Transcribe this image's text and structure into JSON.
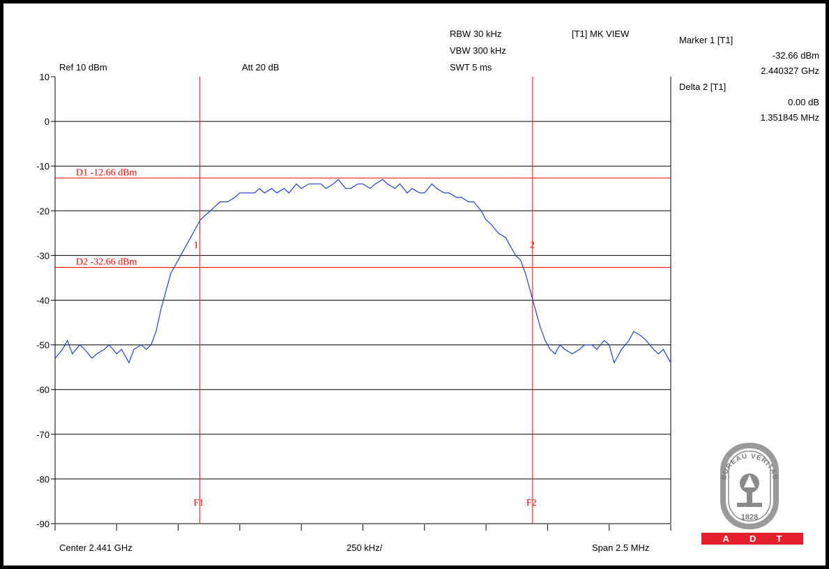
{
  "header": {
    "ref_level": "Ref 10 dBm",
    "attenuation": "Att  20 dB",
    "rbw": "RBW 30 kHz",
    "vbw": "VBW 300 kHz",
    "swt": "SWT 5 ms",
    "view_mode": "[T1] MK VIEW"
  },
  "markers": {
    "marker1_title": "Marker 1 [T1]",
    "marker1_level": "-32.66 dBm",
    "marker1_freq": "2.440327 GHz",
    "delta2_title": "Delta 2 [T1]",
    "delta2_level": "0.00 dB",
    "delta2_freq": "1.351845 MHz"
  },
  "footer": {
    "center": "Center 2.441 GHz",
    "per_div": "250 kHz/",
    "span": "Span 2.5 MHz"
  },
  "logo": {
    "text_top": "BUREAU VERITAS",
    "year": "1828",
    "bar_letters": [
      "A",
      "D",
      "T"
    ]
  },
  "colors": {
    "trace": "#1f3fd0",
    "marker_lines": "#ff0000",
    "grid": "#000000",
    "logo_red": "#e4202c"
  },
  "chart_data": {
    "type": "line",
    "title": "",
    "xlabel": "",
    "ylabel": "",
    "ylim": [
      -90,
      10
    ],
    "y_ticks": [
      10,
      0,
      -10,
      -20,
      -30,
      -40,
      -50,
      -60,
      -70,
      -80,
      -90
    ],
    "y_tick_labels": [
      "10",
      "0",
      "-10",
      "-20",
      "-30",
      "-40",
      "-50",
      "-60",
      "-70",
      "-80",
      "-90"
    ],
    "x_unit": "MHz offset from center",
    "xlim": [
      -1.25,
      1.25
    ],
    "x_div_count": 10,
    "grid": true,
    "reference_lines": [
      {
        "label": "D1 -12.66 dBm",
        "value": -12.66
      },
      {
        "label": "D2 -32.66 dBm",
        "value": -32.66
      }
    ],
    "frequency_lines": [
      {
        "label": "F1",
        "x": -0.662
      },
      {
        "label": "F2",
        "x": 0.689
      }
    ],
    "marker_points": [
      {
        "label": "1",
        "x": -0.662,
        "y": -32.66
      },
      {
        "label": "2",
        "x": 0.689,
        "y": -32.66
      }
    ],
    "series": [
      {
        "x": [
          -1.25,
          -1.22,
          -1.2,
          -1.18,
          -1.15,
          -1.13,
          -1.1,
          -1.08,
          -1.05,
          -1.03,
          -1.0,
          -0.98,
          -0.95,
          -0.93,
          -0.9,
          -0.88,
          -0.86,
          -0.84,
          -0.82,
          -0.8,
          -0.78,
          -0.76,
          -0.74,
          -0.72,
          -0.7,
          -0.68,
          -0.66,
          -0.64,
          -0.62,
          -0.6,
          -0.58,
          -0.55,
          -0.52,
          -0.5,
          -0.47,
          -0.44,
          -0.42,
          -0.4,
          -0.37,
          -0.35,
          -0.32,
          -0.3,
          -0.27,
          -0.25,
          -0.22,
          -0.2,
          -0.17,
          -0.15,
          -0.12,
          -0.1,
          -0.07,
          -0.05,
          -0.02,
          0.0,
          0.03,
          0.05,
          0.08,
          0.1,
          0.13,
          0.15,
          0.18,
          0.2,
          0.23,
          0.25,
          0.28,
          0.3,
          0.33,
          0.35,
          0.38,
          0.4,
          0.43,
          0.45,
          0.48,
          0.5,
          0.52,
          0.55,
          0.58,
          0.6,
          0.62,
          0.64,
          0.66,
          0.68,
          0.7,
          0.72,
          0.74,
          0.76,
          0.78,
          0.8,
          0.82,
          0.85,
          0.88,
          0.9,
          0.93,
          0.95,
          0.98,
          1.0,
          1.02,
          1.05,
          1.08,
          1.1,
          1.13,
          1.15,
          1.18,
          1.2,
          1.22,
          1.25
        ],
        "y": [
          -53,
          -51,
          -49,
          -52,
          -50,
          -51,
          -53,
          -52,
          -51,
          -50,
          -52,
          -51,
          -54,
          -51,
          -50,
          -51,
          -50,
          -47,
          -42,
          -38,
          -34,
          -32,
          -30,
          -28,
          -26,
          -24,
          -22,
          -21,
          -20,
          -19,
          -18,
          -18,
          -17,
          -16,
          -16,
          -16,
          -15,
          -16,
          -15,
          -16,
          -15,
          -16,
          -14,
          -15,
          -14,
          -14,
          -14,
          -15,
          -14,
          -13,
          -15,
          -15,
          -14,
          -14,
          -15,
          -14,
          -13,
          -14,
          -15,
          -14,
          -16,
          -15,
          -16,
          -16,
          -14,
          -15,
          -16,
          -16,
          -17,
          -17,
          -18,
          -18,
          -20,
          -22,
          -23,
          -25,
          -26,
          -28,
          -30,
          -31,
          -34,
          -38,
          -42,
          -46,
          -49,
          -51,
          -52,
          -50,
          -51,
          -52,
          -51,
          -50,
          -50,
          -51,
          -49,
          -50,
          -54,
          -51,
          -49,
          -47,
          -48,
          -49,
          -51,
          -52,
          -51,
          -54
        ]
      }
    ]
  }
}
